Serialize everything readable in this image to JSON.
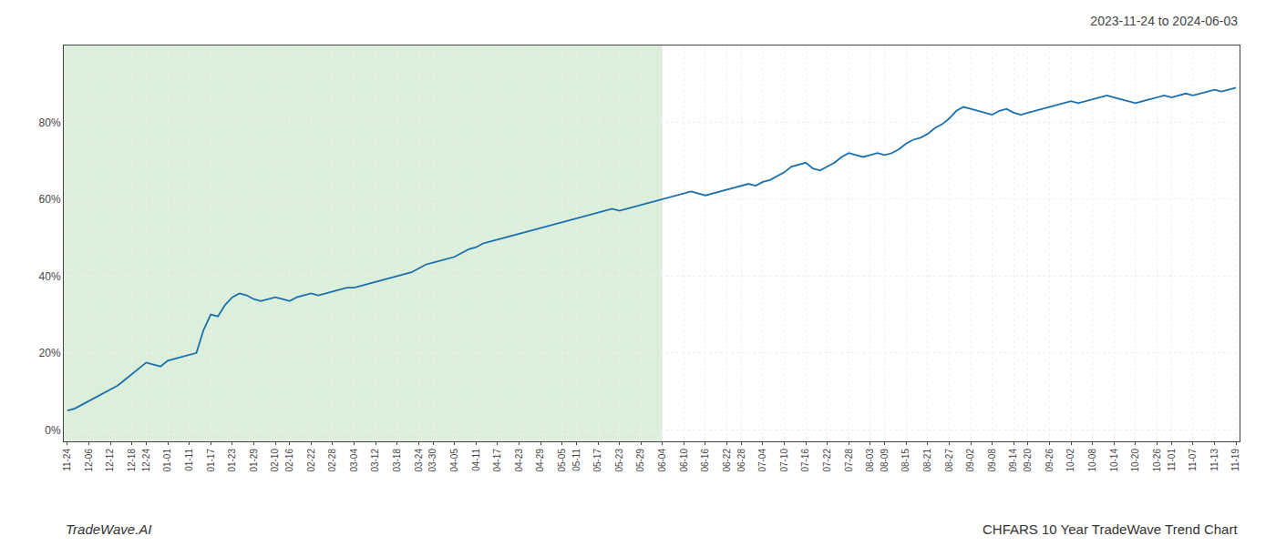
{
  "chart_data": {
    "type": "line",
    "title": "2023-11-24 to 2024-06-03",
    "annotations": [
      "TradeWave.AI",
      "CHFARS 10 Year TradeWave Trend Chart"
    ],
    "categories": [
      "11-24",
      null,
      null,
      "12-06",
      null,
      null,
      "12-12",
      null,
      null,
      "12-18",
      null,
      "12-24",
      null,
      null,
      "01-01",
      null,
      null,
      "01-11",
      null,
      null,
      "01-17",
      null,
      null,
      "01-23",
      null,
      null,
      "01-29",
      null,
      null,
      "02-10",
      null,
      "02-16",
      null,
      null,
      "02-22",
      null,
      null,
      "02-28",
      null,
      null,
      "03-04",
      null,
      null,
      "03-12",
      null,
      null,
      "03-18",
      null,
      null,
      "03-24",
      null,
      "03-30",
      null,
      null,
      "04-05",
      null,
      null,
      "04-11",
      null,
      null,
      "04-17",
      null,
      null,
      "04-23",
      null,
      null,
      "04-29",
      null,
      null,
      "05-05",
      null,
      "05-11",
      null,
      null,
      "05-17",
      null,
      null,
      "05-23",
      null,
      null,
      "05-29",
      null,
      null,
      "06-04",
      null,
      null,
      "06-10",
      null,
      null,
      "06-16",
      null,
      null,
      "06-22",
      null,
      "06-28",
      null,
      null,
      "07-04",
      null,
      null,
      "07-10",
      null,
      null,
      "07-16",
      null,
      null,
      "07-22",
      null,
      null,
      "07-28",
      null,
      null,
      "08-03",
      null,
      "08-09",
      null,
      null,
      "08-15",
      null,
      null,
      "08-21",
      null,
      null,
      "08-27",
      null,
      null,
      "09-02",
      null,
      null,
      "09-08",
      null,
      null,
      "09-14",
      null,
      "09-20",
      null,
      null,
      "09-26",
      null,
      null,
      "10-02",
      null,
      null,
      "10-08",
      null,
      null,
      "10-14",
      null,
      null,
      "10-20",
      null,
      null,
      "10-26",
      null,
      "11-01",
      null,
      null,
      "11-07",
      null,
      null,
      "11-13",
      null,
      null,
      "11-19"
    ],
    "values": [
      5.0,
      5.5,
      6.5,
      7.5,
      8.5,
      9.5,
      10.5,
      11.5,
      13.0,
      14.5,
      16.0,
      17.5,
      17.0,
      16.5,
      18.0,
      18.5,
      19.0,
      19.5,
      20.0,
      26.0,
      30.0,
      29.5,
      32.5,
      34.5,
      35.5,
      35.0,
      34.0,
      33.5,
      34.0,
      34.5,
      34.0,
      33.5,
      34.5,
      35.0,
      35.5,
      35.0,
      35.5,
      36.0,
      36.5,
      37.0,
      37.0,
      37.5,
      38.0,
      38.5,
      39.0,
      39.5,
      40.0,
      40.5,
      41.0,
      42.0,
      43.0,
      43.5,
      44.0,
      44.5,
      45.0,
      46.0,
      47.0,
      47.5,
      48.5,
      49.0,
      49.5,
      50.0,
      50.5,
      51.0,
      51.5,
      52.0,
      52.5,
      53.0,
      53.5,
      54.0,
      54.5,
      55.0,
      55.5,
      56.0,
      56.5,
      57.0,
      57.5,
      57.0,
      57.5,
      58.0,
      58.5,
      59.0,
      59.5,
      60.0,
      60.5,
      61.0,
      61.5,
      62.0,
      61.5,
      61.0,
      61.5,
      62.0,
      62.5,
      63.0,
      63.5,
      64.0,
      63.5,
      64.5,
      65.0,
      66.0,
      67.0,
      68.5,
      69.0,
      69.5,
      68.0,
      67.5,
      68.5,
      69.5,
      71.0,
      72.0,
      71.5,
      71.0,
      71.5,
      72.0,
      71.5,
      72.0,
      73.0,
      74.5,
      75.5,
      76.0,
      77.0,
      78.5,
      79.5,
      81.0,
      83.0,
      84.0,
      83.5,
      83.0,
      82.5,
      82.0,
      83.0,
      83.5,
      82.5,
      82.0,
      82.5,
      83.0,
      83.5,
      84.0,
      84.5,
      85.0,
      85.5,
      85.0,
      85.5,
      86.0,
      86.5,
      87.0,
      86.5,
      86.0,
      85.5,
      85.0,
      85.5,
      86.0,
      86.5,
      87.0,
      86.5,
      87.0,
      87.5,
      87.0,
      87.5,
      88.0,
      88.5,
      88.0,
      88.5,
      89.0
    ],
    "color": "#1a6faf",
    "ylim": [
      -3,
      100
    ],
    "yticks": [
      {
        "value": 0,
        "label": "0%"
      },
      {
        "value": 20,
        "label": "20%"
      },
      {
        "value": 40,
        "label": "40%"
      },
      {
        "value": 60,
        "label": "60%"
      },
      {
        "value": 80,
        "label": "80%"
      }
    ],
    "grid": true,
    "shaded_region": {
      "until": "06-04",
      "color": "#c8e6c8"
    }
  }
}
